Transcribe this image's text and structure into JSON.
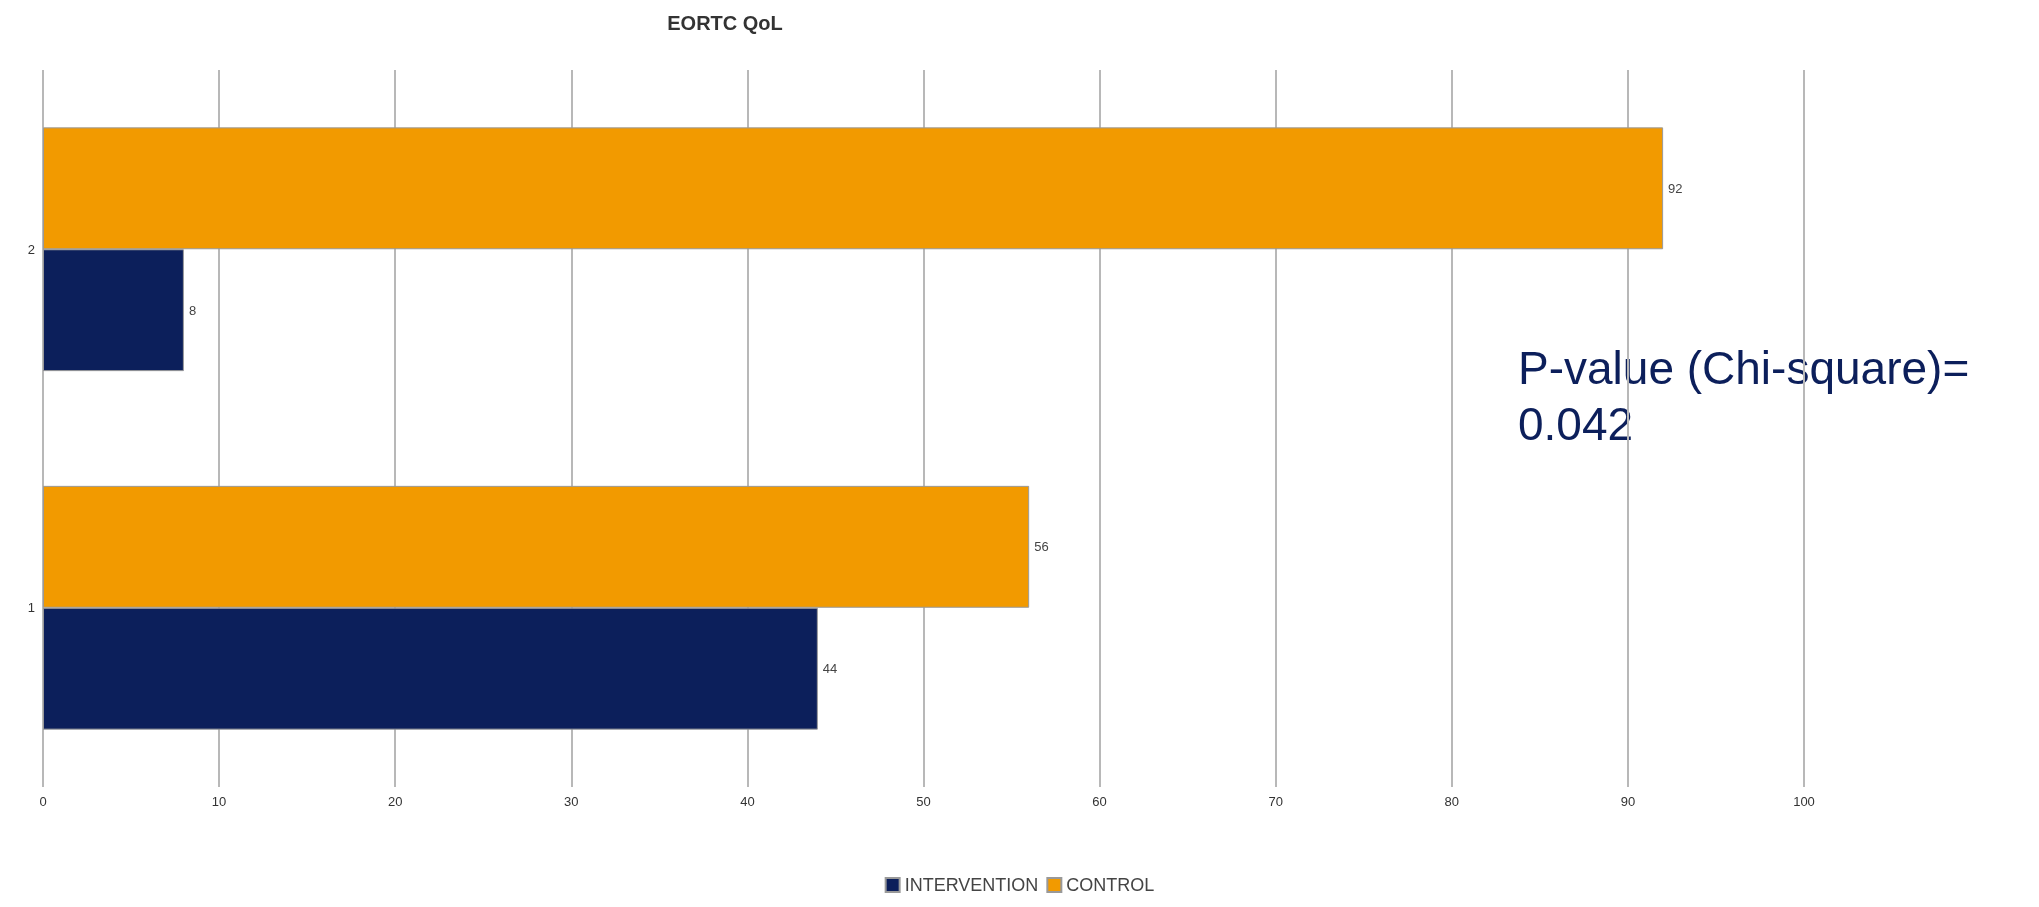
{
  "chart_data": {
    "type": "bar",
    "orientation": "horizontal",
    "title": "EORTC QoL",
    "categories": [
      "2",
      "1"
    ],
    "series": [
      {
        "name": "INTERVENTION",
        "color": "#0c1f5b",
        "values": [
          8,
          44
        ]
      },
      {
        "name": "CONTROL",
        "color": "#f29a00",
        "values": [
          92,
          56
        ]
      }
    ],
    "xlim": [
      0,
      100
    ],
    "xticks": [
      0,
      10,
      20,
      30,
      40,
      50,
      60,
      70,
      80,
      90,
      100
    ],
    "grid": "x",
    "legend": "bottom",
    "data_labels": true,
    "annotations": [
      "P-value (Chi-square)= 0.042"
    ]
  }
}
